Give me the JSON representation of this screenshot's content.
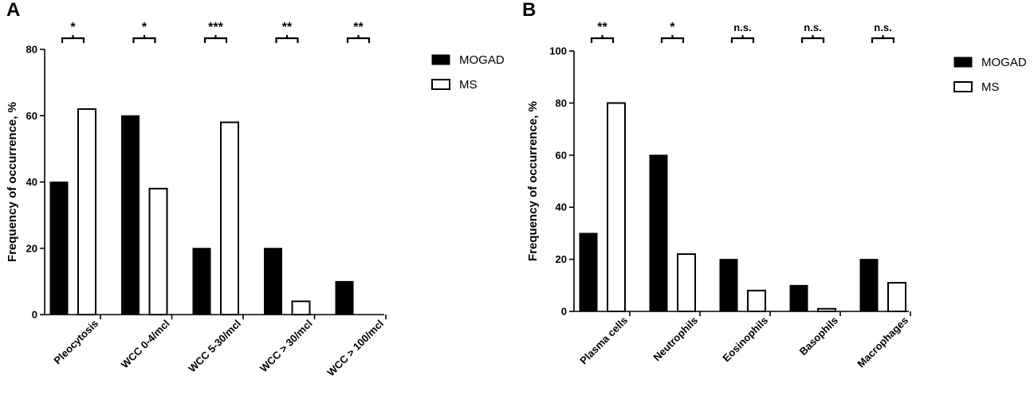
{
  "chart_data": [
    {
      "type": "bar",
      "panel_label": "A",
      "ylabel": "Frequency of occurrence, %",
      "ylim": [
        0,
        80
      ],
      "yticks": [
        0,
        20,
        40,
        60,
        80
      ],
      "categories": [
        "Pleocytosis",
        "WCC 0-4/mcl",
        "WCC 5-30/mcl",
        "WCC > 30/mcl",
        "WCC > 100/mcl"
      ],
      "series": [
        {
          "name": "MOGAD",
          "color": "#000000",
          "values": [
            40,
            60,
            20,
            20,
            10
          ]
        },
        {
          "name": "MS",
          "color": "#ffffff",
          "values": [
            62,
            38,
            58,
            4,
            0
          ]
        }
      ],
      "significance": [
        "*",
        "*",
        "***",
        "**",
        "**"
      ],
      "legend_position": "right"
    },
    {
      "type": "bar",
      "panel_label": "B",
      "ylabel": "Frequency of occurrence, %",
      "ylim": [
        0,
        100
      ],
      "yticks": [
        0,
        20,
        40,
        60,
        80,
        100
      ],
      "categories": [
        "Plasma cells",
        "Neutrophils",
        "Eosinophils",
        "Basophils",
        "Macrophages"
      ],
      "series": [
        {
          "name": "MOGAD",
          "color": "#000000",
          "values": [
            30,
            60,
            20,
            10,
            20
          ]
        },
        {
          "name": "MS",
          "color": "#ffffff",
          "values": [
            80,
            22,
            8,
            1,
            11
          ]
        }
      ],
      "significance": [
        "**",
        "*",
        "n.s.",
        "n.s.",
        "n.s."
      ],
      "legend_position": "right"
    }
  ]
}
